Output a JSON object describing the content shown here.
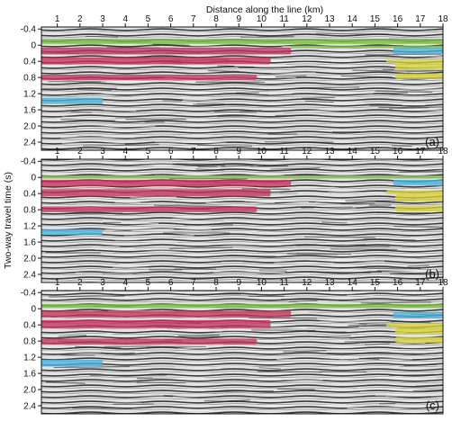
{
  "figure": {
    "x_axis_title": "Distance along the line (km)",
    "y_axis_title": "Two-way travel time (s)",
    "x_ticks": [
      "1",
      "2",
      "3",
      "4",
      "5",
      "6",
      "7",
      "8",
      "9",
      "10",
      "11",
      "12",
      "13",
      "14",
      "15",
      "16",
      "17",
      "18"
    ],
    "y_ticks": [
      "-0.4",
      "0",
      "0.4",
      "0.8",
      "1.2",
      "1.6",
      "2.0",
      "2.4"
    ],
    "x_range_km": [
      0.3,
      18
    ],
    "y_range_s": [
      -0.45,
      2.6
    ],
    "colors": {
      "green": "#7cc242",
      "red": "#c8325e",
      "cyan": "#47b6e3",
      "yellow": "#d9d339",
      "seismic_light": "#e4e4e4",
      "seismic_dark": "#3a3a3a"
    }
  },
  "panels": [
    {
      "label": "(a)",
      "highlights": [
        {
          "color": "green",
          "x0": 0.3,
          "x1": 18.0,
          "t0": -0.16,
          "t1": -0.03
        },
        {
          "color": "green",
          "x0": 11.3,
          "x1": 18.0,
          "t0": 0.01,
          "t1": 0.07
        },
        {
          "color": "red",
          "x0": 0.3,
          "x1": 11.3,
          "t0": 0.06,
          "t1": 0.23
        },
        {
          "color": "red",
          "x0": 0.3,
          "x1": 10.4,
          "t0": 0.3,
          "t1": 0.47
        },
        {
          "color": "red",
          "x0": 0.3,
          "x1": 9.8,
          "t0": 0.73,
          "t1": 0.86
        },
        {
          "color": "cyan",
          "x0": 0.3,
          "x1": 3.0,
          "t0": 1.3,
          "t1": 1.46
        },
        {
          "color": "cyan",
          "x0": 15.8,
          "x1": 18.0,
          "t0": 0.06,
          "t1": 0.22
        },
        {
          "color": "yellow",
          "x0": 15.5,
          "x1": 18.0,
          "t0": 0.36,
          "t1": 0.45
        },
        {
          "color": "yellow",
          "x0": 15.9,
          "x1": 18.0,
          "t0": 0.45,
          "t1": 0.62
        },
        {
          "color": "yellow",
          "x0": 15.9,
          "x1": 18.0,
          "t0": 0.7,
          "t1": 0.84
        }
      ]
    },
    {
      "label": "(b)",
      "highlights": [
        {
          "color": "green",
          "x0": 0.3,
          "x1": 18.0,
          "t0": -0.05,
          "t1": 0.03
        },
        {
          "color": "red",
          "x0": 0.3,
          "x1": 11.3,
          "t0": 0.06,
          "t1": 0.22
        },
        {
          "color": "red",
          "x0": 0.3,
          "x1": 10.4,
          "t0": 0.29,
          "t1": 0.47
        },
        {
          "color": "red",
          "x0": 0.3,
          "x1": 9.8,
          "t0": 0.72,
          "t1": 0.86
        },
        {
          "color": "cyan",
          "x0": 0.3,
          "x1": 3.0,
          "t0": 1.28,
          "t1": 1.42
        },
        {
          "color": "cyan",
          "x0": 15.8,
          "x1": 18.0,
          "t0": 0.06,
          "t1": 0.2
        },
        {
          "color": "yellow",
          "x0": 15.5,
          "x1": 18.0,
          "t0": 0.32,
          "t1": 0.42
        },
        {
          "color": "yellow",
          "x0": 15.9,
          "x1": 18.0,
          "t0": 0.42,
          "t1": 0.6
        },
        {
          "color": "yellow",
          "x0": 15.9,
          "x1": 18.0,
          "t0": 0.7,
          "t1": 0.84
        }
      ]
    },
    {
      "label": "(c)",
      "highlights": [
        {
          "color": "green",
          "x0": 0.3,
          "x1": 18.0,
          "t0": -0.12,
          "t1": -0.02
        },
        {
          "color": "red",
          "x0": 0.3,
          "x1": 11.3,
          "t0": 0.05,
          "t1": 0.21
        },
        {
          "color": "red",
          "x0": 0.3,
          "x1": 10.4,
          "t0": 0.28,
          "t1": 0.48
        },
        {
          "color": "red",
          "x0": 0.3,
          "x1": 9.8,
          "t0": 0.74,
          "t1": 0.88
        },
        {
          "color": "cyan",
          "x0": 0.3,
          "x1": 3.0,
          "t0": 1.26,
          "t1": 1.42
        },
        {
          "color": "cyan",
          "x0": 15.8,
          "x1": 18.0,
          "t0": 0.08,
          "t1": 0.24
        },
        {
          "color": "yellow",
          "x0": 15.5,
          "x1": 18.0,
          "t0": 0.36,
          "t1": 0.46
        },
        {
          "color": "yellow",
          "x0": 15.9,
          "x1": 18.0,
          "t0": 0.46,
          "t1": 0.64
        },
        {
          "color": "yellow",
          "x0": 15.9,
          "x1": 18.0,
          "t0": 0.7,
          "t1": 0.84
        }
      ]
    }
  ]
}
